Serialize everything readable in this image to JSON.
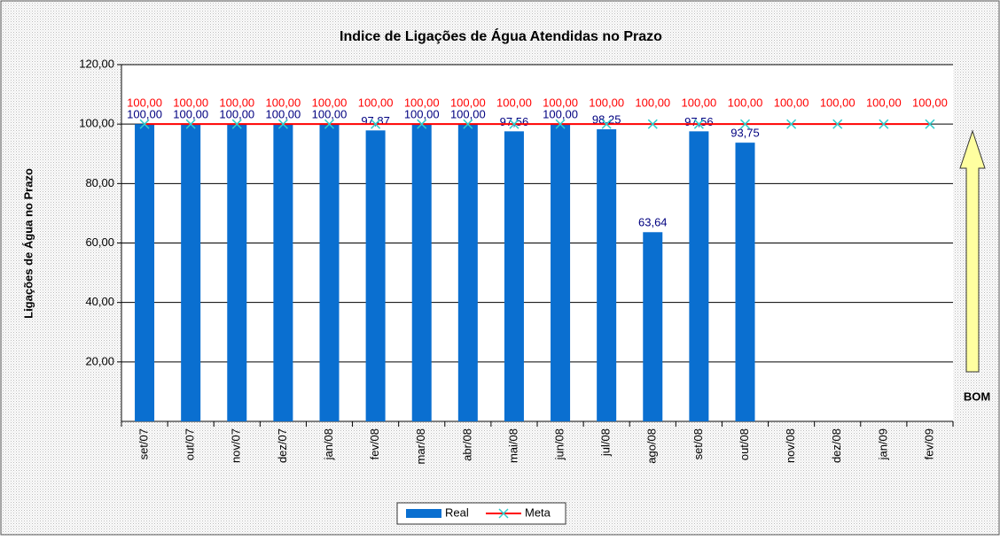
{
  "chart_data": {
    "type": "bar",
    "title": "Indice de Ligações de Água Atendidas no Prazo",
    "y_label": "Ligações de Água no Prazo",
    "annotation": "BOM",
    "categories": [
      "set/07",
      "out/07",
      "nov/07",
      "dez/07",
      "jan/08",
      "fev/08",
      "mar/08",
      "abr/08",
      "mai/08",
      "jun/08",
      "jul/08",
      "ago/08",
      "set/08",
      "out/08",
      "nov/08",
      "dez/08",
      "jan/09",
      "fev/09"
    ],
    "series": [
      {
        "name": "Real",
        "type": "bar",
        "color": "#0a6fd0",
        "values": [
          100,
          100,
          100,
          100,
          100,
          97.87,
          100,
          100,
          97.56,
          100,
          98.25,
          63.64,
          97.56,
          93.75,
          null,
          null,
          null,
          null
        ],
        "value_labels": [
          "100,00",
          "100,00",
          "100,00",
          "100,00",
          "100,00",
          "97,87",
          "100,00",
          "100,00",
          "97,56",
          "100,00",
          "98,25",
          "63,64",
          "97,56",
          "93,75",
          null,
          null,
          null,
          null
        ]
      },
      {
        "name": "Meta",
        "type": "line",
        "color": "#ff0000",
        "marker_color": "#33cccc",
        "values": [
          100,
          100,
          100,
          100,
          100,
          100,
          100,
          100,
          100,
          100,
          100,
          100,
          100,
          100,
          100,
          100,
          100,
          100
        ],
        "value_labels": [
          "100,00",
          "100,00",
          "100,00",
          "100,00",
          "100,00",
          "100,00",
          "100,00",
          "100,00",
          "100,00",
          "100,00",
          "100,00",
          "100,00",
          "100,00",
          "100,00",
          "100,00",
          "100,00",
          "100,00",
          "100,00"
        ]
      }
    ],
    "ylim": [
      0,
      120
    ],
    "yticks": [
      {
        "value": 20,
        "label": "20,00"
      },
      {
        "value": 40,
        "label": "40,00"
      },
      {
        "value": 60,
        "label": "60,00"
      },
      {
        "value": 80,
        "label": "80,00"
      },
      {
        "value": 100,
        "label": "100,00"
      },
      {
        "value": 120,
        "label": "120,00"
      }
    ],
    "grid": true,
    "legend": "bottom"
  }
}
